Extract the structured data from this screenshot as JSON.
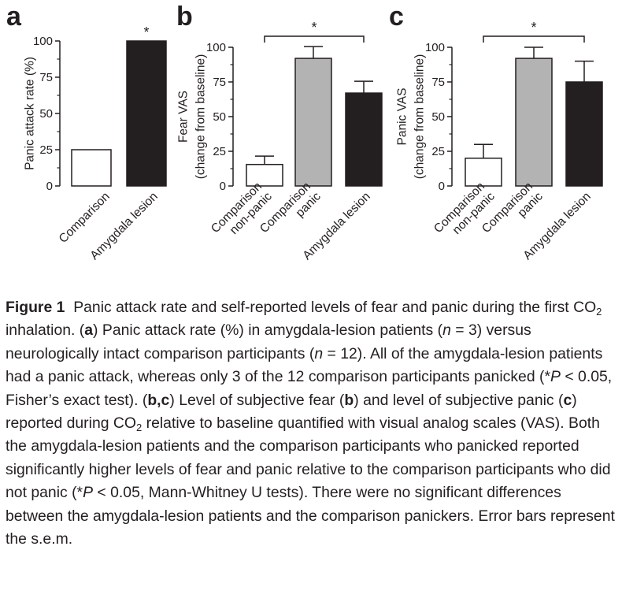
{
  "chart_data": [
    {
      "panel": "a",
      "type": "bar",
      "categories": [
        "Comparison",
        "Amygdala lesion"
      ],
      "values": [
        25,
        100
      ],
      "bar_colors": [
        "#ffffff",
        "#231f20"
      ],
      "ylabel": "Panic attack rate (%)",
      "ylim": [
        0,
        100
      ],
      "yticks": [
        "0",
        "25",
        "50",
        "75",
        "100"
      ],
      "significance": [
        {
          "bar": 1,
          "label": "*"
        }
      ]
    },
    {
      "panel": "b",
      "type": "bar",
      "categories": [
        [
          "Comparison",
          "non-panic"
        ],
        [
          "Comparison",
          "panic"
        ],
        [
          "Amygdala lesion"
        ]
      ],
      "values": [
        15.5,
        92,
        67
      ],
      "errors": [
        6,
        8.5,
        8.5
      ],
      "bar_colors": [
        "#ffffff",
        "#b3b3b3",
        "#231f20"
      ],
      "ylabel": [
        "Fear VAS",
        "(change from baseline)"
      ],
      "ylim": [
        0,
        100
      ],
      "yticks": [
        "0",
        "25",
        "50",
        "75",
        "100"
      ],
      "significance": [
        {
          "from": 0,
          "to": 2,
          "label": "*"
        }
      ]
    },
    {
      "panel": "c",
      "type": "bar",
      "categories": [
        [
          "Comparison",
          "non-panic"
        ],
        [
          "Comparison",
          "panic"
        ],
        [
          "Amygdala lesion"
        ]
      ],
      "values": [
        20,
        92,
        75
      ],
      "errors": [
        10,
        8,
        15
      ],
      "bar_colors": [
        "#ffffff",
        "#b3b3b3",
        "#231f20"
      ],
      "ylabel": [
        "Panic VAS",
        "(change from baseline)"
      ],
      "ylim": [
        0,
        100
      ],
      "yticks": [
        "0",
        "25",
        "50",
        "75",
        "100"
      ],
      "significance": [
        {
          "from": 0,
          "to": 2,
          "label": "*"
        }
      ]
    }
  ],
  "caption": {
    "figure_label": "Figure 1",
    "t1": "Panic attack rate and self-reported levels of fear and panic during the first CO",
    "sub2": "2",
    "t2": " inhalation. (",
    "b_a": "a",
    "t3": ") Panic attack rate (%) in amygdala-lesion patients (",
    "n": "n",
    "t4": " = 3) versus neurologically intact comparison participants (",
    "t5": " = 12). All of the amygdala-lesion patients had a panic attack, whereas only 3 of the 12 comparison participants panicked (*",
    "p": "P",
    "t6": " < 0.05, Fisher’s exact test). (",
    "b_bc": "b,c",
    "t7": ") Level of subjective fear (",
    "b_b": "b",
    "t8": ") and level of subjective panic (",
    "b_c": "c",
    "t9": ") reported during CO",
    "t10": " relative to baseline quantified with visual analog scales (VAS). Both the amygdala-lesion patients and the comparison participants who panicked reported significantly higher levels of fear and panic relative to the comparison participants who did not panic (*",
    "t11": " < 0.05, Mann-Whitney U tests). There were no significant differences between the amygdala-lesion patients and the comparison panickers. Error bars represent the s.e.m."
  }
}
